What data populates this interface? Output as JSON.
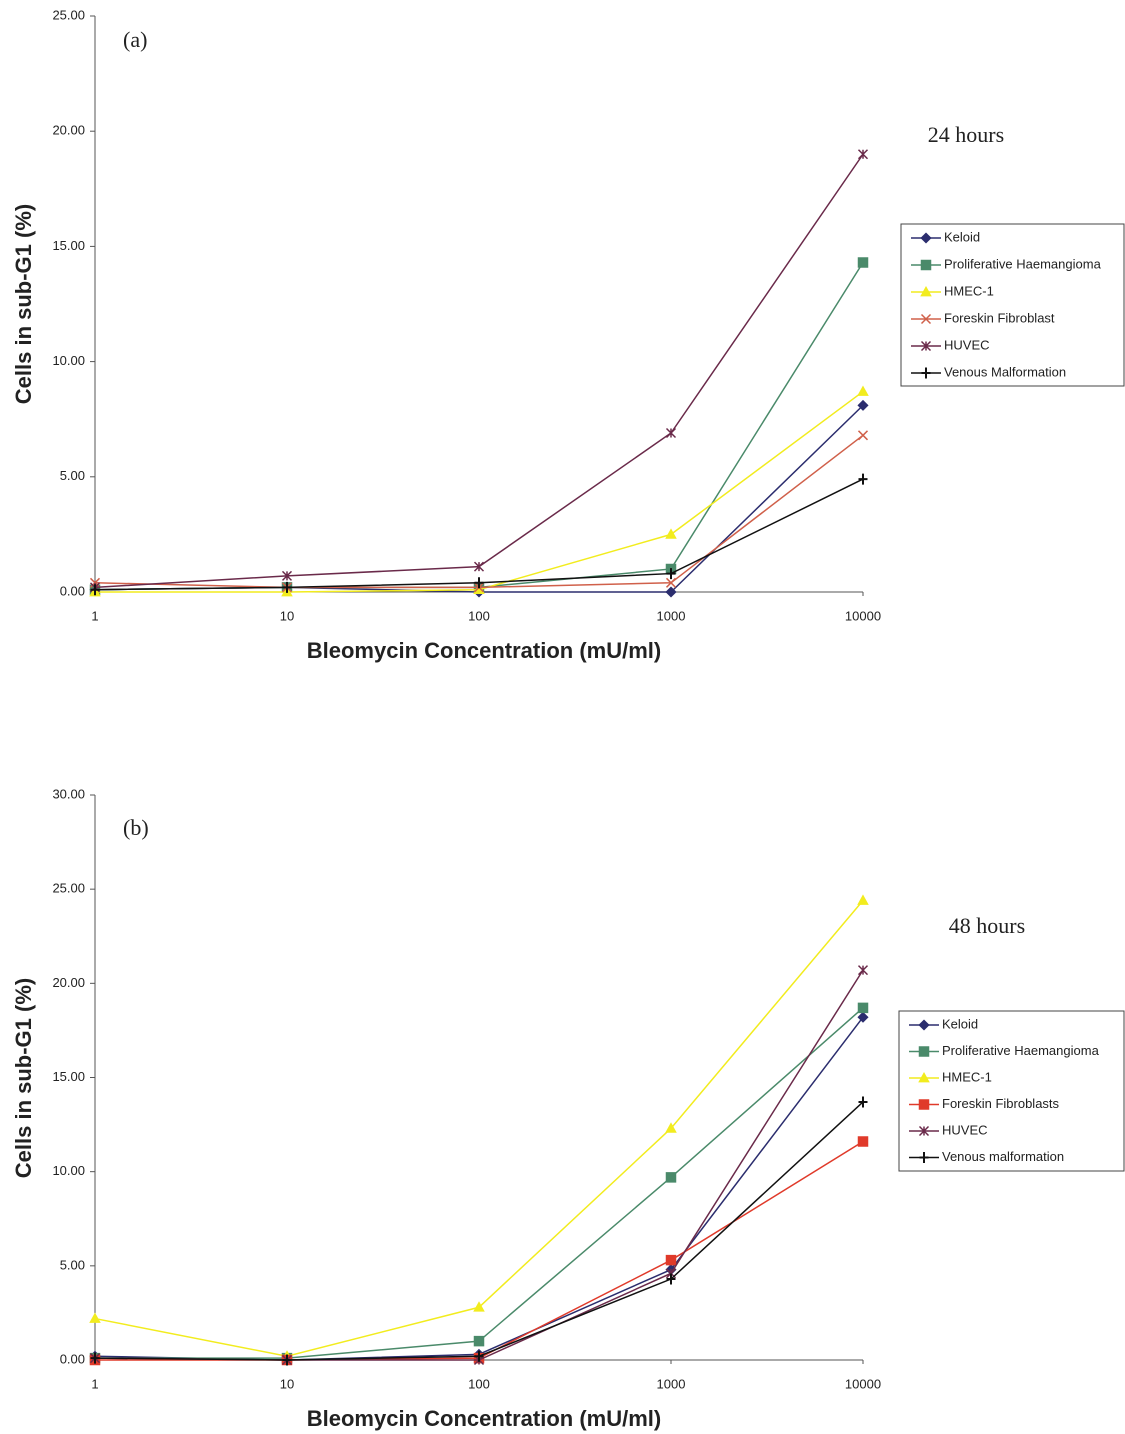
{
  "chart_data": [
    {
      "type": "line",
      "xscale": "log",
      "annotations": [
        "(a)",
        "24 hours"
      ],
      "x_label": "Bleomycin Concentration (mU/ml)",
      "y_label": "Cells in sub-G1 (%)",
      "x": [
        1,
        10,
        100,
        1000,
        10000
      ],
      "xlim": [
        1,
        10000
      ],
      "xticks": [
        1,
        10,
        100,
        1000,
        10000
      ],
      "ylim": [
        0,
        25
      ],
      "yticks": [
        {
          "value": 0,
          "label": "0.00"
        },
        {
          "value": 5,
          "label": "5.00"
        },
        {
          "value": 10,
          "label": "10.00"
        },
        {
          "value": 15,
          "label": "15.00"
        },
        {
          "value": 20,
          "label": "20.00"
        },
        {
          "value": 25,
          "label": "25.00"
        }
      ],
      "legend": "right",
      "series": [
        {
          "name": "Keloid",
          "color": "#2b2d6e",
          "marker": "diamond",
          "values": [
            0.1,
            0.2,
            0.0,
            0.0,
            8.1
          ]
        },
        {
          "name": "Proliferative Haemangioma",
          "color": "#4a8a6a",
          "marker": "square",
          "values": [
            0.1,
            0.2,
            0.2,
            1.0,
            14.3
          ]
        },
        {
          "name": "HMEC-1",
          "color": "#f2ec1e",
          "marker": "triangle",
          "values": [
            0.0,
            0.0,
            0.1,
            2.5,
            8.7
          ]
        },
        {
          "name": "Foreskin Fibroblast",
          "color": "#d0604a",
          "marker": "x",
          "values": [
            0.4,
            0.2,
            0.2,
            0.4,
            6.8
          ]
        },
        {
          "name": "HUVEC",
          "color": "#6a2a4a",
          "marker": "star",
          "values": [
            0.2,
            0.7,
            1.1,
            6.9,
            19.0
          ]
        },
        {
          "name": "Venous Malformation",
          "color": "#111111",
          "marker": "plus",
          "values": [
            0.1,
            0.2,
            0.4,
            0.8,
            4.9
          ]
        }
      ]
    },
    {
      "type": "line",
      "xscale": "log",
      "annotations": [
        "(b)",
        "48 hours"
      ],
      "x_label": "Bleomycin Concentration (mU/ml)",
      "y_label": "Cells in sub-G1 (%)",
      "x": [
        1,
        10,
        100,
        1000,
        10000
      ],
      "xlim": [
        1,
        10000
      ],
      "xticks": [
        1,
        10,
        100,
        1000,
        10000
      ],
      "ylim": [
        0,
        30
      ],
      "yticks": [
        {
          "value": 0,
          "label": "0.00"
        },
        {
          "value": 5,
          "label": "5.00"
        },
        {
          "value": 10,
          "label": "10.00"
        },
        {
          "value": 15,
          "label": "15.00"
        },
        {
          "value": 20,
          "label": "20.00"
        },
        {
          "value": 25,
          "label": "25.00"
        },
        {
          "value": 30,
          "label": "30.00"
        }
      ],
      "legend": "right",
      "series": [
        {
          "name": "Keloid",
          "color": "#2b2d6e",
          "marker": "diamond",
          "values": [
            0.2,
            0.0,
            0.3,
            4.8,
            18.2
          ]
        },
        {
          "name": "Proliferative Haemangioma",
          "color": "#4a8a6a",
          "marker": "square",
          "values": [
            0.1,
            0.1,
            1.0,
            9.7,
            18.7
          ]
        },
        {
          "name": "HMEC-1",
          "color": "#f2ec1e",
          "marker": "triangle",
          "values": [
            2.2,
            0.2,
            2.8,
            12.3,
            24.4
          ]
        },
        {
          "name": "Foreskin Fibroblasts",
          "color": "#e03a2a",
          "marker": "square",
          "values": [
            0.0,
            0.0,
            0.1,
            5.3,
            11.6
          ]
        },
        {
          "name": "HUVEC",
          "color": "#6a2a4a",
          "marker": "star",
          "values": [
            0.1,
            0.0,
            0.0,
            4.6,
            20.7
          ]
        },
        {
          "name": "Venous malformation",
          "color": "#111111",
          "marker": "plus",
          "values": [
            0.1,
            0.0,
            0.2,
            4.3,
            13.7
          ]
        }
      ]
    }
  ]
}
